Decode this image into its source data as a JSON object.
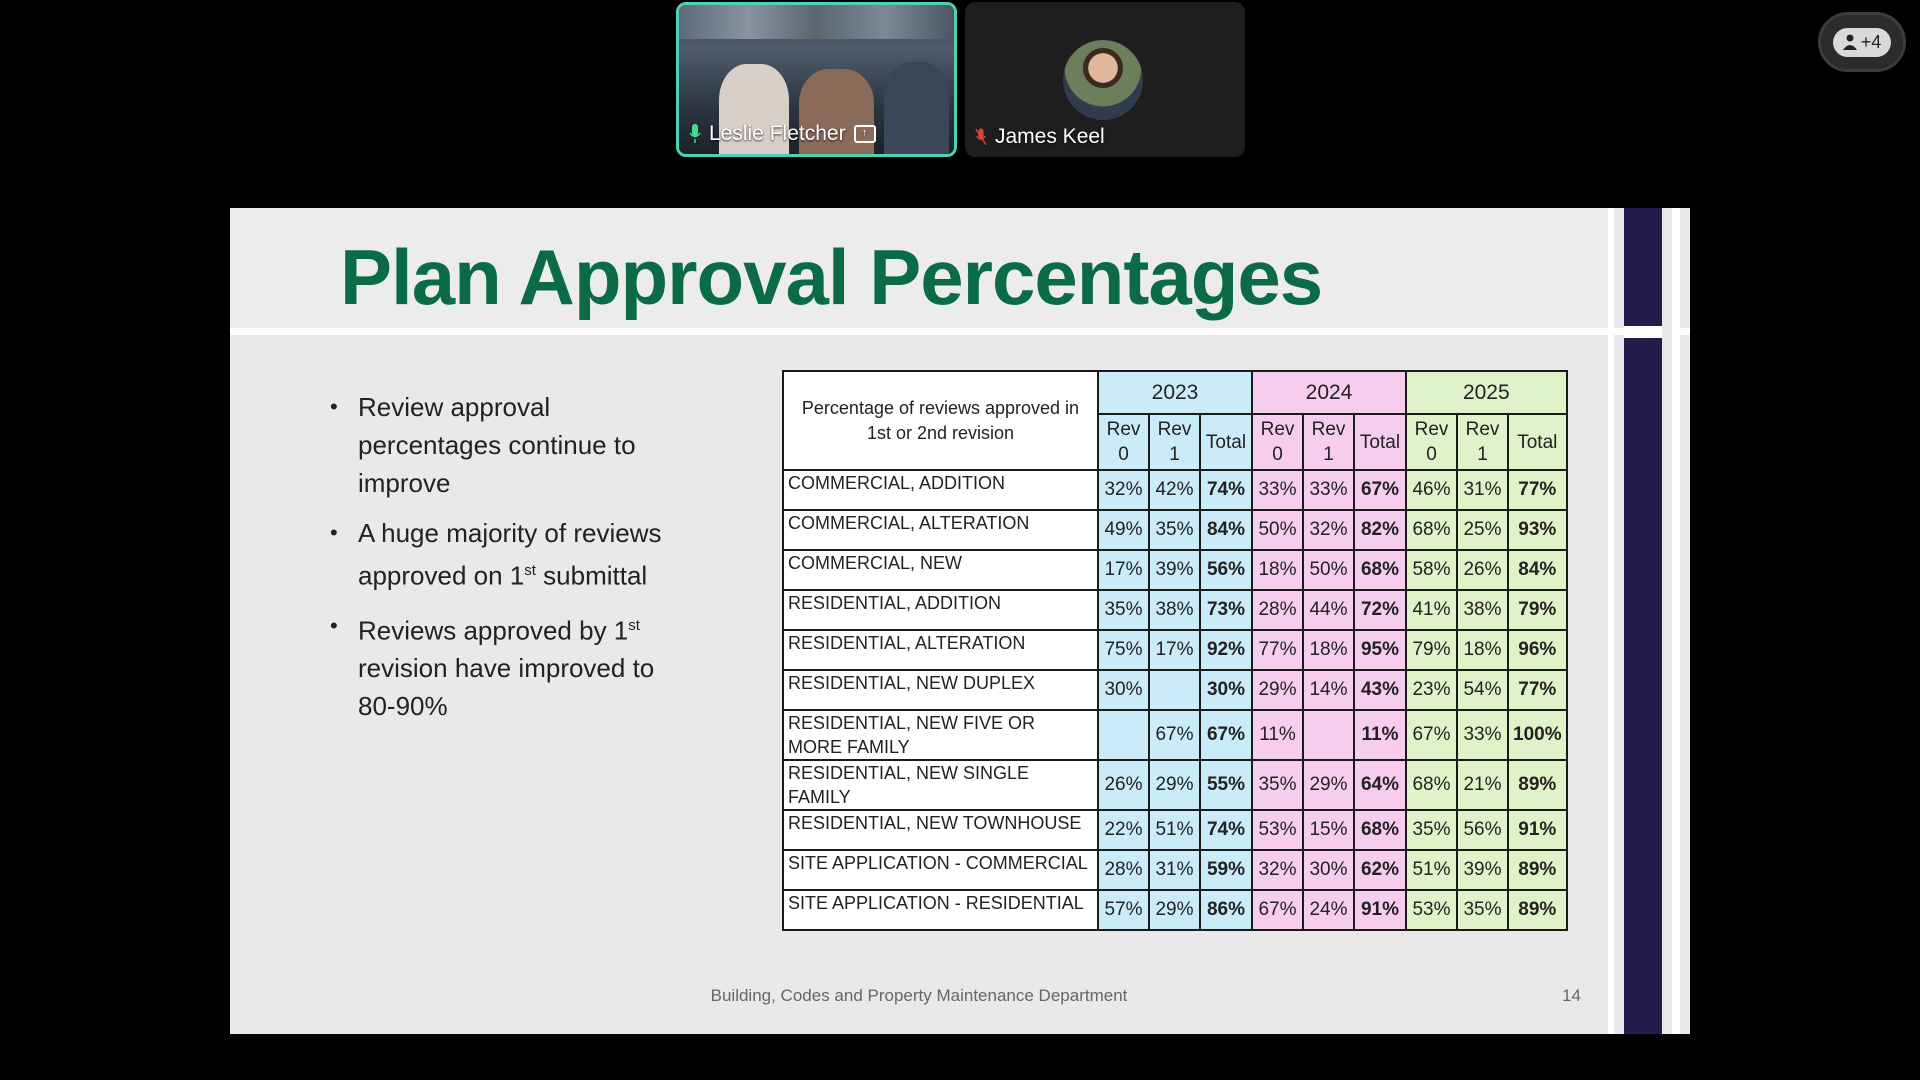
{
  "participants": {
    "active": {
      "name": "Leslie Fletcher"
    },
    "other": {
      "name": "James Keel"
    },
    "more_count": "+4"
  },
  "slide": {
    "title": "Plan Approval Percentages",
    "bullets": [
      {
        "text": "Review approval percentages continue to improve"
      },
      {
        "text_before": "A huge majority of reviews approved on 1",
        "sup": "st",
        "text_after": " submittal"
      },
      {
        "text_before": "Reviews approved by 1",
        "sup": "st",
        "text_after": " revision have improved to 80-90%"
      }
    ],
    "footer": "Building, Codes and Property Maintenance Department",
    "page_number": "14"
  },
  "table": {
    "header_label": "Percentage of reviews approved in 1st or 2nd revision",
    "years": [
      "2023",
      "2024",
      "2025"
    ],
    "sub_headers": [
      "Rev 0",
      "Rev 1",
      "Total"
    ],
    "rows": [
      {
        "label": "COMMERCIAL, ADDITION",
        "values": [
          "32%",
          "42%",
          "74%",
          "33%",
          "33%",
          "67%",
          "46%",
          "31%",
          "77%"
        ]
      },
      {
        "label": "COMMERCIAL, ALTERATION",
        "values": [
          "49%",
          "35%",
          "84%",
          "50%",
          "32%",
          "82%",
          "68%",
          "25%",
          "93%"
        ]
      },
      {
        "label": "COMMERCIAL, NEW",
        "values": [
          "17%",
          "39%",
          "56%",
          "18%",
          "50%",
          "68%",
          "58%",
          "26%",
          "84%"
        ]
      },
      {
        "label": "RESIDENTIAL, ADDITION",
        "values": [
          "35%",
          "38%",
          "73%",
          "28%",
          "44%",
          "72%",
          "41%",
          "38%",
          "79%"
        ]
      },
      {
        "label": "RESIDENTIAL, ALTERATION",
        "values": [
          "75%",
          "17%",
          "92%",
          "77%",
          "18%",
          "95%",
          "79%",
          "18%",
          "96%"
        ]
      },
      {
        "label": "RESIDENTIAL, NEW DUPLEX",
        "values": [
          "30%",
          "",
          "30%",
          "29%",
          "14%",
          "43%",
          "23%",
          "54%",
          "77%"
        ]
      },
      {
        "label": "RESIDENTIAL, NEW FIVE OR MORE FAMILY",
        "values": [
          "",
          "67%",
          "67%",
          "11%",
          "",
          "11%",
          "67%",
          "33%",
          "100%"
        ]
      },
      {
        "label": "RESIDENTIAL, NEW SINGLE FAMILY",
        "values": [
          "26%",
          "29%",
          "55%",
          "35%",
          "29%",
          "64%",
          "68%",
          "21%",
          "89%"
        ]
      },
      {
        "label": "RESIDENTIAL, NEW TOWNHOUSE",
        "values": [
          "22%",
          "51%",
          "74%",
          "53%",
          "15%",
          "68%",
          "35%",
          "56%",
          "91%"
        ]
      },
      {
        "label": "SITE APPLICATION - COMMERCIAL",
        "values": [
          "28%",
          "31%",
          "59%",
          "32%",
          "30%",
          "62%",
          "51%",
          "39%",
          "89%"
        ]
      },
      {
        "label": "SITE APPLICATION - RESIDENTIAL",
        "values": [
          "57%",
          "29%",
          "86%",
          "67%",
          "24%",
          "91%",
          "53%",
          "35%",
          "89%"
        ]
      }
    ]
  },
  "colors": {
    "title_green": "#0b6b46",
    "col_2023": "#c9ecf8",
    "col_2024": "#f7cdee",
    "col_2025": "#dff3c8",
    "active_speaker_border": "#4fd1b5",
    "side_bar": "#231c4d"
  }
}
